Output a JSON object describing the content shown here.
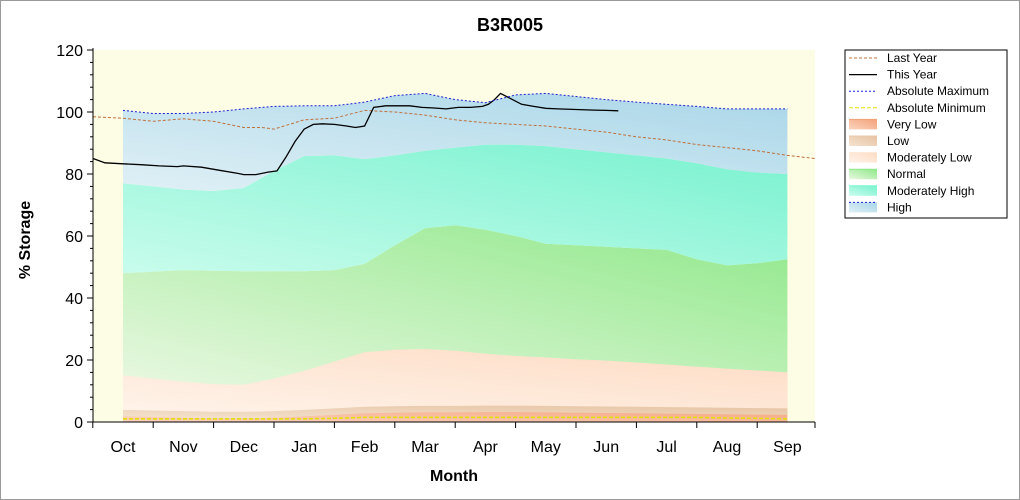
{
  "chart_data": {
    "type": "area",
    "title": "B3R005",
    "xlabel": "Month",
    "ylabel": "% Storage",
    "ylim": [
      0,
      120
    ],
    "yticks": [
      0,
      20,
      40,
      60,
      80,
      100,
      120
    ],
    "categories": [
      "Oct",
      "Nov",
      "Dec",
      "Jan",
      "Feb",
      "Mar",
      "Apr",
      "May",
      "Jun",
      "Jul",
      "Aug",
      "Sep"
    ],
    "grid": false,
    "legend_position": "right",
    "colors": {
      "plot_background": "#fdfde6",
      "last_year": "#c0703a",
      "this_year": "#000000",
      "abs_max": "#1f1fd0",
      "abs_min": "#e0e000",
      "very_low": "#f4a27a",
      "low": "#e8c8a8",
      "moderately_low": "#fde6d2",
      "normal": "#8fe88a",
      "moderately_high": "#7ff5d2",
      "high": "#a9d8ea"
    },
    "band_x": [
      0,
      0.5,
      1,
      1.5,
      2,
      2.5,
      3,
      3.5,
      4,
      4.5,
      5,
      5.5,
      6,
      6.5,
      7,
      7.5,
      8,
      8.5,
      9,
      9.5,
      10,
      10.5,
      11
    ],
    "bands": {
      "abs_min": [
        1,
        1,
        1,
        1,
        1,
        1,
        1,
        1.2,
        1.5,
        1.5,
        1.5,
        1.5,
        1.5,
        1.5,
        1.5,
        1.5,
        1.5,
        1.5,
        1.5,
        1.5,
        1.3,
        1.2,
        1
      ],
      "very_low_top": [
        3,
        2.8,
        2.6,
        2.4,
        2.4,
        2.6,
        3,
        3.5,
        4,
        4.2,
        4.3,
        4.3,
        4.4,
        4.4,
        4.3,
        4.2,
        4.1,
        4,
        3.9,
        3.8,
        3.7,
        3.6,
        3.5
      ],
      "low_top": [
        15,
        14,
        13,
        12.2,
        12,
        14,
        16.5,
        19.5,
        22.5,
        23.3,
        23.5,
        23,
        22,
        21.3,
        20.8,
        20.2,
        19.8,
        19.2,
        18.5,
        17.8,
        17.2,
        16.6,
        16
      ],
      "moderately_low_top": [
        48,
        48.5,
        49,
        48.8,
        48.6,
        48.6,
        48.6,
        49,
        51,
        57,
        62.5,
        63.5,
        62,
        60,
        57.5,
        57,
        56.5,
        56,
        55.5,
        52.5,
        50.5,
        51.2,
        52.5
      ],
      "normal_top": [
        77,
        76,
        75,
        74.5,
        75.5,
        81,
        85.8,
        86,
        84.8,
        86,
        87.5,
        88.5,
        89.5,
        89.5,
        89,
        88,
        87,
        86,
        85,
        83.5,
        81.5,
        80.5,
        80
      ],
      "high_top": [
        100.5,
        99.5,
        99.5,
        100,
        101,
        101.8,
        102,
        102,
        103.2,
        105.3,
        106,
        104,
        103,
        105.5,
        106,
        105,
        104,
        103.2,
        102.5,
        101.8,
        101,
        101,
        101
      ]
    },
    "series": [
      {
        "name": "Last Year",
        "x": [
          -0.5,
          0,
          0.5,
          1,
          1.5,
          2,
          2.3,
          2.5,
          3,
          3.5,
          4,
          4.5,
          5,
          5.5,
          6,
          6.5,
          7,
          7.5,
          8,
          8.5,
          9,
          9.5,
          10,
          10.5,
          11,
          11.5
        ],
        "values": [
          98.5,
          98,
          97,
          97.8,
          97,
          95,
          95,
          94.5,
          97.5,
          98,
          100.5,
          100,
          99,
          97.5,
          96.5,
          96,
          95.5,
          94.5,
          93.5,
          92,
          91,
          89.5,
          88.5,
          87.5,
          86,
          85
        ]
      },
      {
        "name": "This Year",
        "x": [
          -0.5,
          -0.3,
          0,
          0.3,
          0.6,
          0.9,
          1,
          1.3,
          1.6,
          1.9,
          2,
          2.2,
          2.4,
          2.55,
          2.7,
          2.85,
          3,
          3.15,
          3.3,
          3.5,
          3.7,
          3.85,
          4,
          4.15,
          4.35,
          4.55,
          4.75,
          4.95,
          5.15,
          5.35,
          5.55,
          5.75,
          5.95,
          6.05,
          6.15,
          6.25,
          6.4,
          6.6,
          6.8,
          7,
          7.2,
          7.5,
          7.8,
          8,
          8.2
        ],
        "values": [
          85,
          83.6,
          83.3,
          83,
          82.6,
          82.4,
          82.6,
          82.2,
          81.2,
          80.2,
          79.8,
          79.8,
          80.6,
          81,
          85.5,
          90.5,
          94.5,
          96,
          96.2,
          96,
          95.5,
          95,
          95.5,
          101.5,
          102,
          102,
          102,
          101.5,
          101.3,
          101,
          101.5,
          101.5,
          101.8,
          102.5,
          104,
          106,
          104.5,
          102.5,
          101.8,
          101.2,
          101,
          100.8,
          100.6,
          100.5,
          100.4
        ]
      },
      {
        "name": "Absolute Maximum",
        "x": [
          0,
          0.5,
          1,
          1.5,
          2,
          2.5,
          3,
          3.5,
          4,
          4.5,
          5,
          5.5,
          6,
          6.5,
          7,
          7.5,
          8,
          8.5,
          9,
          9.5,
          10,
          10.5,
          11
        ],
        "values": [
          100.5,
          99.5,
          99.5,
          100,
          101,
          101.8,
          102,
          102,
          103.2,
          105.3,
          106,
          104,
          103,
          105.5,
          106,
          105,
          104,
          103.2,
          102.5,
          101.8,
          101,
          101,
          101
        ]
      },
      {
        "name": "Absolute Minimum",
        "x": [
          0,
          0.5,
          1,
          1.5,
          2,
          2.5,
          3,
          3.5,
          4,
          4.5,
          5,
          5.5,
          6,
          6.5,
          7,
          7.5,
          8,
          8.5,
          9,
          9.5,
          10,
          10.5,
          11
        ],
        "values": [
          1,
          1,
          1,
          1,
          1,
          1,
          1,
          1.2,
          1.5,
          1.5,
          1.5,
          1.5,
          1.5,
          1.5,
          1.5,
          1.5,
          1.5,
          1.5,
          1.5,
          1.5,
          1.3,
          1.2,
          1
        ]
      }
    ],
    "legend": [
      {
        "key": "last_year",
        "label": "Last Year",
        "kind": "line",
        "dash": "3,2"
      },
      {
        "key": "this_year",
        "label": "This Year",
        "kind": "line",
        "dash": ""
      },
      {
        "key": "abs_max",
        "label": "Absolute Maximum",
        "kind": "line",
        "dash": "2,2"
      },
      {
        "key": "abs_min",
        "label": "Absolute Minimum",
        "kind": "line",
        "dash": "4,2"
      },
      {
        "key": "very_low",
        "label": "Very Low",
        "kind": "band"
      },
      {
        "key": "low",
        "label": "Low",
        "kind": "band"
      },
      {
        "key": "moderately_low",
        "label": "Moderately Low",
        "kind": "band"
      },
      {
        "key": "normal",
        "label": "Normal",
        "kind": "band"
      },
      {
        "key": "moderately_high",
        "label": "Moderately High",
        "kind": "band"
      },
      {
        "key": "high",
        "label": "High",
        "kind": "band"
      }
    ]
  }
}
